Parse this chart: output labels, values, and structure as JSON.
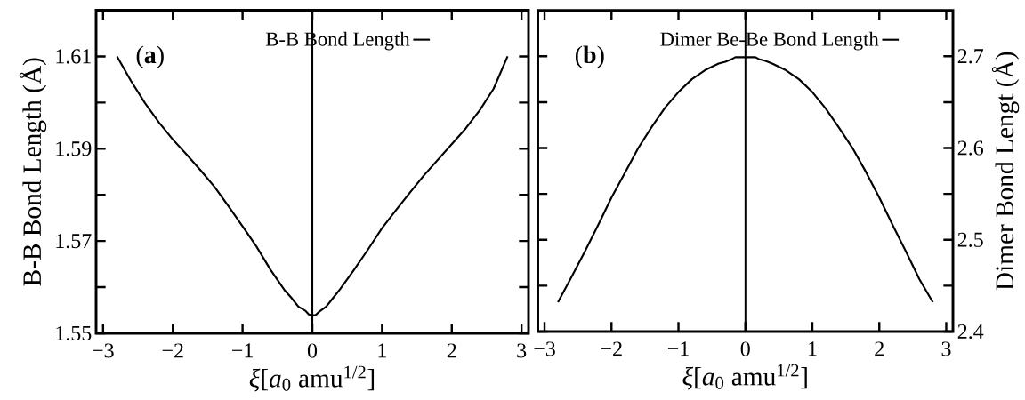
{
  "chart_data": [
    {
      "type": "line",
      "xlabel": "*ξ*[*a*$_{0}$ amu$^{1/2}$]",
      "ylabel": "B-B Bond Length (Å)",
      "x": [
        -2.8,
        -2.6,
        -2.4,
        -2.2,
        -2.0,
        -1.8,
        -1.6,
        -1.4,
        -1.2,
        -1.0,
        -0.8,
        -0.6,
        -0.4,
        -0.3,
        -0.2,
        -0.1,
        -0.05,
        0,
        0.05,
        0.1,
        0.2,
        0.3,
        0.4,
        0.6,
        0.8,
        1.0,
        1.2,
        1.4,
        1.6,
        1.8,
        2.0,
        2.2,
        2.4,
        2.6,
        2.8
      ],
      "series": [
        {
          "name": "B-B Bond Length",
          "color": "#000000",
          "values": [
            1.61,
            1.6047,
            1.5999,
            1.5957,
            1.592,
            1.5887,
            1.5853,
            1.5817,
            1.5775,
            1.5732,
            1.5688,
            1.5638,
            1.5594,
            1.5577,
            1.5558,
            1.5549,
            1.5541,
            1.5539,
            1.554,
            1.5547,
            1.5558,
            1.5577,
            1.5596,
            1.5638,
            1.5682,
            1.5728,
            1.5767,
            1.5805,
            1.5842,
            1.5876,
            1.591,
            1.5944,
            1.5983,
            1.603,
            1.61
          ]
        }
      ],
      "xlim": [
        -3.1,
        3.1
      ],
      "ylim": [
        1.55,
        1.62
      ],
      "xticks": [
        {
          "value": -3,
          "label": "−3"
        },
        {
          "value": -2,
          "label": "−2"
        },
        {
          "value": -1,
          "label": "−1"
        },
        0,
        1,
        2,
        3
      ],
      "yticks": [
        1.55,
        {
          "value": 1.56,
          "label": null
        },
        1.57,
        {
          "value": 1.58,
          "label": null
        },
        1.59,
        {
          "value": 1.6,
          "label": null
        },
        1.61
      ],
      "ref_lines": [
        {
          "axis": "x",
          "value": 0,
          "color": "#000000"
        }
      ],
      "legend": "top",
      "annotations": [
        "(**a**)"
      ]
    },
    {
      "type": "line",
      "xlabel": "*ξ*[*a*$_{0}$ amu$^{1/2}$]",
      "y2label": "Dimer Bond Lengt (Å)",
      "x": [
        -2.8,
        -2.6,
        -2.4,
        -2.2,
        -2.0,
        -1.8,
        -1.6,
        -1.4,
        -1.2,
        -1.0,
        -0.8,
        -0.6,
        -0.4,
        -0.3,
        -0.2,
        -0.15,
        -0.1,
        0,
        0.1,
        0.15,
        0.2,
        0.3,
        0.4,
        0.6,
        0.8,
        1.0,
        1.2,
        1.4,
        1.6,
        1.8,
        2.0,
        2.2,
        2.4,
        2.6,
        2.8
      ],
      "series": [
        {
          "name": "Dimer Be-Be Bond Length",
          "color": "#000000",
          "axis": "y2",
          "values": [
            2.432,
            2.459,
            2.487,
            2.516,
            2.546,
            2.573,
            2.6,
            2.623,
            2.644,
            2.661,
            2.675,
            2.685,
            2.692,
            2.694,
            2.697,
            2.699,
            2.699,
            2.699,
            2.699,
            2.699,
            2.697,
            2.695,
            2.692,
            2.685,
            2.675,
            2.661,
            2.643,
            2.622,
            2.6,
            2.574,
            2.546,
            2.516,
            2.487,
            2.457,
            2.432
          ]
        }
      ],
      "xlim": [
        -3.1,
        3.1
      ],
      "y2lim": [
        2.4,
        2.75
      ],
      "xticks": [
        {
          "value": -3,
          "label": "−3"
        },
        {
          "value": -2,
          "label": "−2"
        },
        {
          "value": -1,
          "label": "−1"
        },
        0,
        1,
        2,
        3
      ],
      "y2ticks": [
        2.4,
        {
          "value": 2.45,
          "label": null
        },
        2.5,
        {
          "value": 2.55,
          "label": null
        },
        2.6,
        {
          "value": 2.65,
          "label": null
        },
        2.7
      ],
      "ref_lines": [
        {
          "axis": "x",
          "value": 0,
          "color": "#000000"
        }
      ],
      "legend": "top",
      "annotations": [
        "(**b**)"
      ]
    }
  ]
}
